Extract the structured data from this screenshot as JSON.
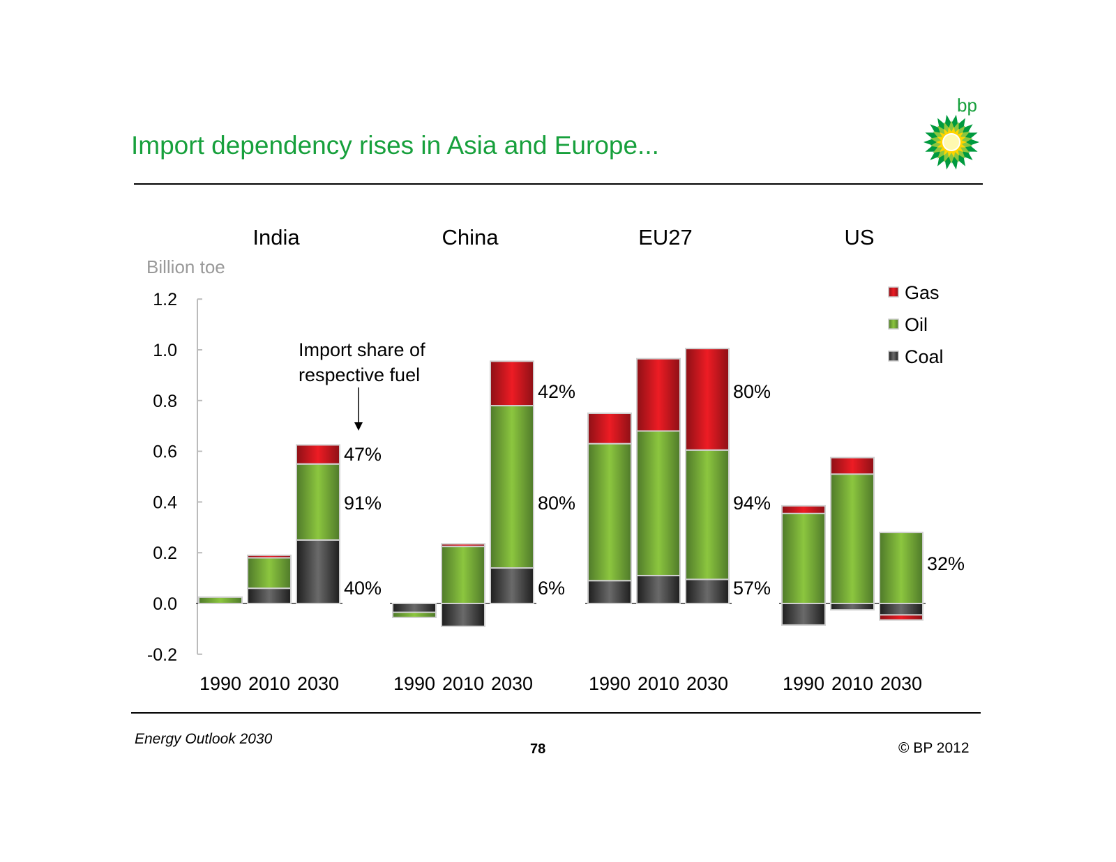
{
  "header": {
    "title": "Import dependency rises in Asia and Europe...",
    "logo_text": "bp",
    "title_color": "#17a03c"
  },
  "footer": {
    "publication": "Energy Outlook 2030",
    "page_number": "78",
    "copyright": "© BP 2012"
  },
  "chart_data": {
    "type": "bar",
    "stacked": true,
    "ylabel": "Billion toe",
    "ylim": [
      -0.2,
      1.2
    ],
    "yticks": [
      "-0.2",
      "0.0",
      "0.2",
      "0.4",
      "0.6",
      "0.8",
      "1.0",
      "1.2"
    ],
    "grid": false,
    "legend_position": "top-right",
    "groups": [
      "India",
      "China",
      "EU27",
      "US"
    ],
    "categories": [
      "1990",
      "2010",
      "2030"
    ],
    "series": [
      {
        "name": "Coal",
        "color": "#3a3a3a",
        "values": {
          "India": [
            0.0,
            0.06,
            0.25
          ],
          "China": [
            -0.035,
            -0.09,
            0.14
          ],
          "EU27": [
            0.09,
            0.11,
            0.095
          ],
          "US": [
            -0.085,
            -0.025,
            -0.045
          ]
        }
      },
      {
        "name": "Oil",
        "color": "#8cc63f",
        "values": {
          "India": [
            0.025,
            0.12,
            0.3
          ],
          "China": [
            -0.02,
            0.225,
            0.64
          ],
          "EU27": [
            0.54,
            0.57,
            0.51
          ],
          "US": [
            0.355,
            0.51,
            0.28
          ]
        }
      },
      {
        "name": "Gas",
        "color": "#ed1c24",
        "values": {
          "India": [
            0.0,
            0.01,
            0.075
          ],
          "China": [
            0.0,
            0.01,
            0.175
          ],
          "EU27": [
            0.12,
            0.285,
            0.4
          ],
          "US": [
            0.03,
            0.065,
            -0.02
          ]
        }
      }
    ],
    "legend": [
      "Gas",
      "Oil",
      "Coal"
    ],
    "annotation": {
      "line1": "Import share of",
      "line2": "respective fuel"
    },
    "share_labels": [
      {
        "group": "India",
        "fuel": "Gas",
        "text": "47%"
      },
      {
        "group": "India",
        "fuel": "Oil",
        "text": "91%"
      },
      {
        "group": "India",
        "fuel": "Coal",
        "text": "40%"
      },
      {
        "group": "China",
        "fuel": "Gas",
        "text": "42%"
      },
      {
        "group": "China",
        "fuel": "Oil",
        "text": "80%"
      },
      {
        "group": "China",
        "fuel": "Coal",
        "text": "6%"
      },
      {
        "group": "EU27",
        "fuel": "Gas",
        "text": "80%"
      },
      {
        "group": "EU27",
        "fuel": "Oil",
        "text": "94%"
      },
      {
        "group": "EU27",
        "fuel": "Coal",
        "text": "57%"
      },
      {
        "group": "US",
        "fuel": "Oil",
        "text": "32%"
      }
    ]
  }
}
